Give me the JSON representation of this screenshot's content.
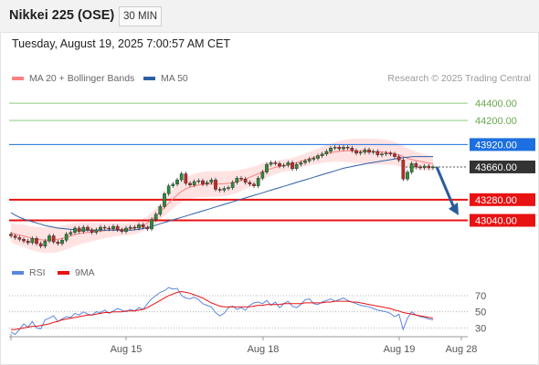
{
  "header": {
    "instrument": "Nikkei 225 (OSE)",
    "timeframe": "30 MIN"
  },
  "datetime": "Tuesday, August 19, 2025 7:00:57 AM CET",
  "legend": {
    "ma20_label": "MA 20 + Bollinger Bands",
    "ma50_label": "MA 50",
    "copyright": "Research © 2025 Trading Central",
    "rsi_label": "RSI",
    "ma9_label": "9MA"
  },
  "colors": {
    "up_candle": "#2f8a3b",
    "down_candle": "#c62828",
    "ma20": "#ff8080",
    "bollinger_fill": "#ffd7d7",
    "ma50": "#2e5fa3",
    "resistance_green": "#8cc97a",
    "pivot_blue": "#1c6fe0",
    "support_red": "#e81212",
    "current_price_box": "#333333",
    "forecast_arrow": "#2a5b9c",
    "rsi": "#5b86e0",
    "rsi_ma": "#e81212"
  },
  "chart_data": [
    {
      "type": "candlestick",
      "title": "Nikkei 225 (OSE)",
      "timeframe": "30 MIN",
      "x_tick_labels": [
        "Aug 15",
        "Aug 18",
        "Aug 19",
        "Aug 28"
      ],
      "y_range": [
        42600,
        44560
      ],
      "grid": false,
      "levels": [
        {
          "value": "44400.00",
          "kind": "resistance",
          "color": "#8cc97a"
        },
        {
          "value": "44200.00",
          "kind": "resistance",
          "color": "#8cc97a"
        },
        {
          "value": "43920.00",
          "kind": "pivot",
          "color": "#1c6fe0"
        },
        {
          "value": "43660.00",
          "kind": "last",
          "color": "#333333"
        },
        {
          "value": "43280.00",
          "kind": "support",
          "color": "#e81212"
        },
        {
          "value": "43040.00",
          "kind": "support",
          "color": "#e81212"
        }
      ],
      "close": [
        42860,
        42840,
        42820,
        42800,
        42780,
        42830,
        42770,
        42740,
        42800,
        42860,
        42790,
        42770,
        42810,
        42880,
        42900,
        42950,
        42910,
        42960,
        42930,
        42900,
        42930,
        42960,
        42950,
        42940,
        42970,
        42930,
        42910,
        42950,
        42960,
        42950,
        42990,
        42960,
        42940,
        43050,
        43110,
        43200,
        43350,
        43440,
        43460,
        43510,
        43580,
        43470,
        43450,
        43490,
        43500,
        43460,
        43480,
        43510,
        43400,
        43390,
        43410,
        43420,
        43480,
        43530,
        43520,
        43480,
        43460,
        43440,
        43530,
        43600,
        43690,
        43710,
        43700,
        43670,
        43680,
        43710,
        43640,
        43690,
        43710,
        43730,
        43750,
        43760,
        43790,
        43810,
        43840,
        43880,
        43890,
        43870,
        43890,
        43880,
        43850,
        43820,
        43830,
        43860,
        43830,
        43840,
        43800,
        43810,
        43820,
        43810,
        43780,
        43740,
        43520,
        43600,
        43700,
        43660,
        43650,
        43670,
        43650,
        43660
      ],
      "ma20": [
        42900,
        42880,
        42870,
        42860,
        42845,
        42830,
        42820,
        42815,
        42810,
        42812,
        42815,
        42820,
        42830,
        42845,
        42860,
        42875,
        42885,
        42895,
        42900,
        42905,
        42910,
        42915,
        42920,
        42925,
        42930,
        42932,
        42935,
        42938,
        42940,
        42950,
        42965,
        42985,
        43010,
        43050,
        43090,
        43140,
        43190,
        43240,
        43290,
        43335,
        43375,
        43405,
        43425,
        43440,
        43450,
        43455,
        43460,
        43462,
        43462,
        43462,
        43465,
        43470,
        43478,
        43490,
        43505,
        43520,
        43540,
        43560,
        43580,
        43605,
        43625,
        43640,
        43655,
        43665,
        43675,
        43685,
        43695,
        43710,
        43725,
        43740,
        43755,
        43770,
        43785,
        43800,
        43815,
        43825,
        43835,
        43840,
        43845,
        43848,
        43848,
        43846,
        43844,
        43842,
        43840,
        43838,
        43836,
        43834,
        43830,
        43825,
        43815,
        43800,
        43780,
        43760,
        43745,
        43735,
        43725,
        43715,
        43705,
        43700
      ],
      "ma50": [
        43130,
        43100,
        43075,
        43055,
        43040,
        43025,
        43010,
        42995,
        42980,
        42970,
        42960,
        42950,
        42945,
        42940,
        42935,
        42930,
        42928,
        42925,
        42925,
        42925,
        42925,
        42925,
        42925,
        42925,
        42925,
        42925,
        42925,
        42925,
        42925,
        42930,
        42935,
        42945,
        42955,
        42970,
        42985,
        43000,
        43015,
        43030,
        43045,
        43060,
        43075,
        43090,
        43105,
        43120,
        43135,
        43150,
        43165,
        43180,
        43195,
        43210,
        43225,
        43240,
        43255,
        43270,
        43285,
        43300,
        43315,
        43330,
        43345,
        43360,
        43375,
        43390,
        43405,
        43420,
        43435,
        43450,
        43465,
        43480,
        43495,
        43510,
        43525,
        43540,
        43555,
        43570,
        43585,
        43600,
        43615,
        43630,
        43645,
        43655,
        43665,
        43675,
        43685,
        43695,
        43705,
        43712,
        43720,
        43728,
        43736,
        43744,
        43752,
        43760,
        43768,
        43774,
        43778,
        43780,
        43780,
        43780,
        43780,
        43780
      ]
    },
    {
      "type": "line",
      "title": "RSI",
      "y_tick_labels": [
        "70",
        "50",
        "30"
      ],
      "y_range": [
        18,
        88
      ],
      "series": [
        {
          "name": "RSI",
          "values": [
            25,
            22,
            28,
            35,
            31,
            38,
            30,
            29,
            40,
            42,
            45,
            38,
            41,
            44,
            43,
            48,
            46,
            50,
            47,
            46,
            50,
            49,
            52,
            48,
            51,
            54,
            52,
            50,
            53,
            51,
            55,
            53,
            60,
            66,
            70,
            74,
            76,
            80,
            78,
            79,
            70,
            67,
            66,
            68,
            65,
            60,
            58,
            56,
            49,
            45,
            48,
            55,
            57,
            53,
            55,
            52,
            58,
            61,
            62,
            60,
            64,
            58,
            62,
            55,
            60,
            63,
            57,
            55,
            59,
            65,
            66,
            60,
            59,
            62,
            64,
            66,
            63,
            65,
            67,
            64,
            62,
            60,
            58,
            57,
            56,
            54,
            52,
            51,
            50,
            48,
            44,
            47,
            28,
            42,
            50,
            46,
            44,
            43,
            41,
            40
          ]
        },
        {
          "name": "9MA",
          "values": [
            28,
            28,
            29,
            30,
            31,
            32,
            32,
            33,
            34,
            35,
            37,
            38,
            40,
            41,
            42,
            43,
            44,
            45,
            46,
            46,
            47,
            48,
            49,
            49,
            50,
            50,
            50,
            51,
            51,
            51,
            52,
            53,
            55,
            58,
            61,
            64,
            67,
            70,
            72,
            74,
            75,
            74,
            73,
            71,
            69,
            67,
            64,
            61,
            59,
            57,
            56,
            56,
            56,
            56,
            56,
            56,
            56,
            57,
            58,
            58,
            59,
            59,
            59,
            59,
            60,
            60,
            60,
            60,
            60,
            61,
            61,
            61,
            61,
            61,
            62,
            62,
            63,
            63,
            63,
            63,
            62,
            62,
            61,
            60,
            59,
            58,
            57,
            56,
            55,
            54,
            52,
            51,
            49,
            48,
            47,
            46,
            45,
            44,
            43,
            42
          ]
        }
      ]
    }
  ]
}
